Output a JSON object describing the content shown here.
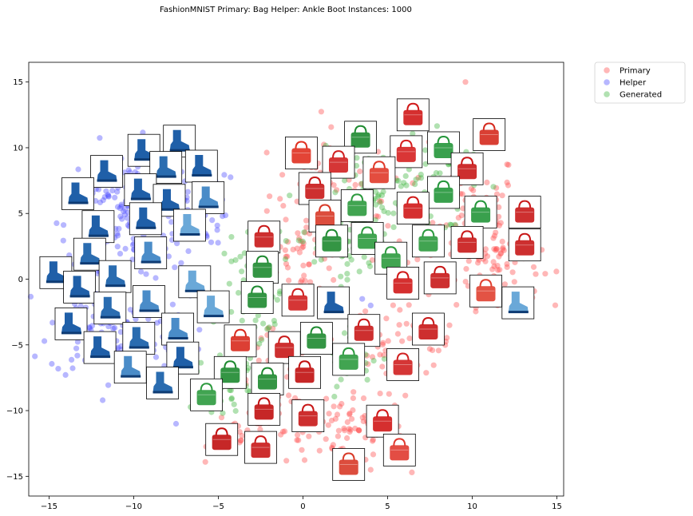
{
  "chart_data": {
    "type": "scatter",
    "title": "FashionMNIST Primary: Bag Helper: Ankle Boot Instances: 1000",
    "xlabel": "",
    "ylabel": "",
    "xlim": [
      -16.2,
      15.4
    ],
    "ylim": [
      -16.5,
      16.5
    ],
    "xticks": [
      -15,
      -10,
      -5,
      0,
      5,
      10,
      15
    ],
    "yticks": [
      -15,
      -10,
      -5,
      0,
      5,
      10,
      15
    ],
    "grid": false,
    "legend_position": "top-right outside",
    "series": [
      {
        "name": "Primary",
        "color": "#ff4b4b",
        "regions": [
          {
            "cx": 2.5,
            "cy": 6.5,
            "rx": 4.5,
            "ry": 5.0,
            "n": 80
          },
          {
            "cx": 9.5,
            "cy": 5.0,
            "rx": 3.5,
            "ry": 5.0,
            "n": 90
          },
          {
            "cx": 11.5,
            "cy": 1.0,
            "rx": 2.5,
            "ry": 3.0,
            "n": 60
          },
          {
            "cx": 6.0,
            "cy": -5.0,
            "rx": 3.0,
            "ry": 3.5,
            "n": 60
          },
          {
            "cx": 2.5,
            "cy": -11.5,
            "rx": 3.5,
            "ry": 2.5,
            "n": 70
          },
          {
            "cx": -1.5,
            "cy": -8.5,
            "rx": 2.5,
            "ry": 4.5,
            "n": 60
          },
          {
            "cx": -3.5,
            "cy": -12.0,
            "rx": 2.0,
            "ry": 1.5,
            "n": 25
          },
          {
            "cx": 0.0,
            "cy": 2.0,
            "rx": 2.0,
            "ry": 3.0,
            "n": 40
          }
        ],
        "points": [
          [
            9.6,
            15.0
          ],
          [
            11.5,
            -2.0
          ],
          [
            13.8,
            3.5
          ],
          [
            4.0,
            -14.5
          ],
          [
            8.0,
            10.5
          ]
        ]
      },
      {
        "name": "Helper",
        "color": "#4b4bff",
        "regions": [
          {
            "cx": -10.5,
            "cy": 4.0,
            "rx": 3.5,
            "ry": 6.0,
            "n": 170
          },
          {
            "cx": -11.5,
            "cy": -3.5,
            "rx": 3.5,
            "ry": 4.0,
            "n": 120
          },
          {
            "cx": -6.5,
            "cy": 6.0,
            "rx": 2.0,
            "ry": 3.5,
            "n": 50
          },
          {
            "cx": -7.5,
            "cy": -5.0,
            "rx": 2.0,
            "ry": 3.5,
            "n": 40
          }
        ],
        "points": [
          [
            3.5,
            -1.5
          ],
          [
            4.0,
            -2.0
          ],
          [
            2.5,
            -1.0
          ],
          [
            -7.5,
            -11.0
          ]
        ]
      },
      {
        "name": "Generated",
        "color": "#3cb43c",
        "regions": [
          {
            "cx": 5.0,
            "cy": 6.5,
            "rx": 3.5,
            "ry": 5.0,
            "n": 90
          },
          {
            "cx": 2.0,
            "cy": 3.0,
            "rx": 3.5,
            "ry": 3.0,
            "n": 60
          },
          {
            "cx": -2.5,
            "cy": -2.0,
            "rx": 2.5,
            "ry": 5.0,
            "n": 60
          },
          {
            "cx": -4.5,
            "cy": -8.0,
            "rx": 2.0,
            "ry": 2.0,
            "n": 40
          },
          {
            "cx": 3.0,
            "cy": -6.0,
            "rx": 1.8,
            "ry": 2.0,
            "n": 30
          },
          {
            "cx": 8.5,
            "cy": 7.5,
            "rx": 2.0,
            "ry": 3.0,
            "n": 30
          }
        ],
        "points": []
      }
    ],
    "thumbnails": [
      {
        "x": 6.5,
        "y": 12.5,
        "kind": "bag",
        "color": "#d01818"
      },
      {
        "x": 11.0,
        "y": 11.0,
        "kind": "bag",
        "color": "#d52a1e"
      },
      {
        "x": 3.4,
        "y": 10.8,
        "kind": "bag",
        "color": "#1e8a30"
      },
      {
        "x": -0.1,
        "y": 9.6,
        "kind": "bag",
        "color": "#e03020"
      },
      {
        "x": 8.3,
        "y": 10.0,
        "kind": "bag",
        "color": "#24963a"
      },
      {
        "x": 6.1,
        "y": 9.7,
        "kind": "bag",
        "color": "#d52020"
      },
      {
        "x": 2.1,
        "y": 8.9,
        "kind": "bag",
        "color": "#d02020"
      },
      {
        "x": 4.5,
        "y": 8.1,
        "kind": "bag",
        "color": "#e03a2a"
      },
      {
        "x": 9.7,
        "y": 8.4,
        "kind": "bag",
        "color": "#c81818"
      },
      {
        "x": 0.7,
        "y": 6.9,
        "kind": "bag",
        "color": "#c81818"
      },
      {
        "x": 8.3,
        "y": 6.6,
        "kind": "bag",
        "color": "#24963a"
      },
      {
        "x": 3.2,
        "y": 5.6,
        "kind": "bag",
        "color": "#2c9a3e"
      },
      {
        "x": 6.5,
        "y": 5.4,
        "kind": "bag",
        "color": "#d01818"
      },
      {
        "x": 10.5,
        "y": 5.1,
        "kind": "bag",
        "color": "#24963a"
      },
      {
        "x": 13.1,
        "y": 5.1,
        "kind": "bag",
        "color": "#c81818"
      },
      {
        "x": 1.3,
        "y": 4.8,
        "kind": "bag",
        "color": "#d83a28"
      },
      {
        "x": -2.3,
        "y": 3.2,
        "kind": "bag",
        "color": "#c81818"
      },
      {
        "x": 1.7,
        "y": 2.9,
        "kind": "bag",
        "color": "#1e8a30"
      },
      {
        "x": 3.8,
        "y": 3.1,
        "kind": "bag",
        "color": "#2c9a3e"
      },
      {
        "x": 7.4,
        "y": 2.9,
        "kind": "bag",
        "color": "#2c9a3e"
      },
      {
        "x": 9.7,
        "y": 2.8,
        "kind": "bag",
        "color": "#c81818"
      },
      {
        "x": 13.1,
        "y": 2.6,
        "kind": "bag",
        "color": "#c81818"
      },
      {
        "x": 5.2,
        "y": 1.6,
        "kind": "bag",
        "color": "#2c9a3e"
      },
      {
        "x": -2.4,
        "y": 0.9,
        "kind": "bag",
        "color": "#1e8a30"
      },
      {
        "x": 5.9,
        "y": -0.3,
        "kind": "bag",
        "color": "#d01818"
      },
      {
        "x": 8.1,
        "y": 0.1,
        "kind": "bag",
        "color": "#c81818"
      },
      {
        "x": 10.8,
        "y": -0.9,
        "kind": "bag",
        "color": "#e04030"
      },
      {
        "x": 12.7,
        "y": -1.8,
        "kind": "boot",
        "color": "#6aa8d8"
      },
      {
        "x": -2.7,
        "y": -1.4,
        "kind": "bag",
        "color": "#1e8a30"
      },
      {
        "x": -0.3,
        "y": -1.6,
        "kind": "bag",
        "color": "#d02020"
      },
      {
        "x": 1.8,
        "y": -1.8,
        "kind": "boot",
        "color": "#1f5fa8"
      },
      {
        "x": 3.6,
        "y": -3.9,
        "kind": "bag",
        "color": "#c81818"
      },
      {
        "x": 7.4,
        "y": -3.8,
        "kind": "bag",
        "color": "#c81818"
      },
      {
        "x": 0.8,
        "y": -4.5,
        "kind": "bag",
        "color": "#1e8a30"
      },
      {
        "x": -3.7,
        "y": -4.7,
        "kind": "bag",
        "color": "#d82a1e"
      },
      {
        "x": -1.1,
        "y": -5.2,
        "kind": "bag",
        "color": "#c81818"
      },
      {
        "x": 2.7,
        "y": -6.1,
        "kind": "bag",
        "color": "#2c9a3e"
      },
      {
        "x": 5.9,
        "y": -6.5,
        "kind": "bag",
        "color": "#d02020"
      },
      {
        "x": 0.1,
        "y": -7.1,
        "kind": "bag",
        "color": "#c01010"
      },
      {
        "x": -4.3,
        "y": -7.1,
        "kind": "bag",
        "color": "#1e8a30"
      },
      {
        "x": -2.1,
        "y": -7.6,
        "kind": "bag",
        "color": "#1e8a30"
      },
      {
        "x": -5.7,
        "y": -8.8,
        "kind": "bag",
        "color": "#2c9a3e"
      },
      {
        "x": -2.3,
        "y": -9.9,
        "kind": "bag",
        "color": "#c01010"
      },
      {
        "x": 0.3,
        "y": -10.4,
        "kind": "bag",
        "color": "#c81818"
      },
      {
        "x": 4.7,
        "y": -10.8,
        "kind": "bag",
        "color": "#d01818"
      },
      {
        "x": -4.8,
        "y": -12.2,
        "kind": "bag",
        "color": "#c01010"
      },
      {
        "x": -2.5,
        "y": -12.8,
        "kind": "bag",
        "color": "#c81818"
      },
      {
        "x": 5.7,
        "y": -13.0,
        "kind": "bag",
        "color": "#e03a30"
      },
      {
        "x": 2.7,
        "y": -14.1,
        "kind": "bag",
        "color": "#d83a28"
      },
      {
        "x": -9.4,
        "y": 9.8,
        "kind": "boot",
        "color": "#1f5fa8"
      },
      {
        "x": -7.3,
        "y": 10.5,
        "kind": "boot",
        "color": "#1f5fa8"
      },
      {
        "x": -11.6,
        "y": 8.2,
        "kind": "boot",
        "color": "#1f5fa8"
      },
      {
        "x": -8.1,
        "y": 8.5,
        "kind": "boot",
        "color": "#2a6cb0"
      },
      {
        "x": -6.0,
        "y": 8.6,
        "kind": "boot",
        "color": "#1f5fa8"
      },
      {
        "x": -9.6,
        "y": 6.8,
        "kind": "boot",
        "color": "#1f5fa8"
      },
      {
        "x": -13.3,
        "y": 6.5,
        "kind": "boot",
        "color": "#1f5fa8"
      },
      {
        "x": -7.9,
        "y": 6.0,
        "kind": "boot",
        "color": "#1f5fa8"
      },
      {
        "x": -5.6,
        "y": 6.2,
        "kind": "boot",
        "color": "#4a8cc8"
      },
      {
        "x": -9.3,
        "y": 4.6,
        "kind": "boot",
        "color": "#1f5fa8"
      },
      {
        "x": -12.1,
        "y": 4.0,
        "kind": "boot",
        "color": "#1f5fa8"
      },
      {
        "x": -6.7,
        "y": 4.1,
        "kind": "boot",
        "color": "#6aa8d8"
      },
      {
        "x": -9.0,
        "y": 2.0,
        "kind": "boot",
        "color": "#4a8cc8"
      },
      {
        "x": -12.6,
        "y": 1.9,
        "kind": "boot",
        "color": "#2a6cb0"
      },
      {
        "x": -14.6,
        "y": 0.5,
        "kind": "boot",
        "color": "#1f5fa8"
      },
      {
        "x": -11.1,
        "y": 0.2,
        "kind": "boot",
        "color": "#2a6cb0"
      },
      {
        "x": -6.4,
        "y": -0.2,
        "kind": "boot",
        "color": "#6aa8d8"
      },
      {
        "x": -13.2,
        "y": -0.6,
        "kind": "boot",
        "color": "#1f5fa8"
      },
      {
        "x": -9.1,
        "y": -1.7,
        "kind": "boot",
        "color": "#4a8cc8"
      },
      {
        "x": -11.4,
        "y": -2.2,
        "kind": "boot",
        "color": "#2a6cb0"
      },
      {
        "x": -5.3,
        "y": -2.1,
        "kind": "boot",
        "color": "#6aa8d8"
      },
      {
        "x": -13.7,
        "y": -3.4,
        "kind": "boot",
        "color": "#1f5fa8"
      },
      {
        "x": -7.4,
        "y": -3.8,
        "kind": "boot",
        "color": "#4a8cc8"
      },
      {
        "x": -9.7,
        "y": -4.5,
        "kind": "boot",
        "color": "#2a6cb0"
      },
      {
        "x": -12.0,
        "y": -5.2,
        "kind": "boot",
        "color": "#1f5fa8"
      },
      {
        "x": -7.1,
        "y": -6.0,
        "kind": "boot",
        "color": "#1f5fa8"
      },
      {
        "x": -10.2,
        "y": -6.7,
        "kind": "boot",
        "color": "#4a8cc8"
      },
      {
        "x": -8.3,
        "y": -7.9,
        "kind": "boot",
        "color": "#2a6cb0"
      }
    ]
  }
}
